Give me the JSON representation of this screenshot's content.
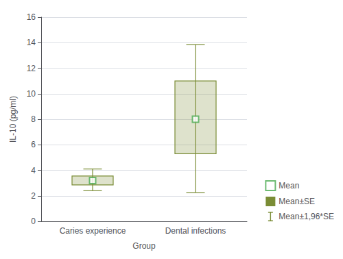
{
  "chart_data": {
    "type": "box",
    "xlabel": "Group",
    "ylabel": "IL-10 (pg/ml)",
    "categories": [
      "Caries experience",
      "Dental infections"
    ],
    "series": [
      {
        "name": "Mean",
        "type": "scatter",
        "marker": "square",
        "color": "#4aaa50",
        "values": [
          3.2,
          8.0
        ]
      },
      {
        "name": "Mean±SE",
        "type": "box",
        "color": "#7a8c35",
        "low": [
          2.85,
          5.3
        ],
        "high": [
          3.55,
          11.0
        ]
      },
      {
        "name": "Mean±1,96*SE",
        "type": "whisker",
        "color": "#7a8c35",
        "low": [
          2.4,
          2.25
        ],
        "high": [
          4.1,
          13.85
        ]
      }
    ],
    "ylim": [
      0,
      16
    ],
    "yticks": [
      0,
      2,
      4,
      6,
      8,
      10,
      12,
      14,
      16
    ],
    "grid": true,
    "legend": "lower right"
  }
}
